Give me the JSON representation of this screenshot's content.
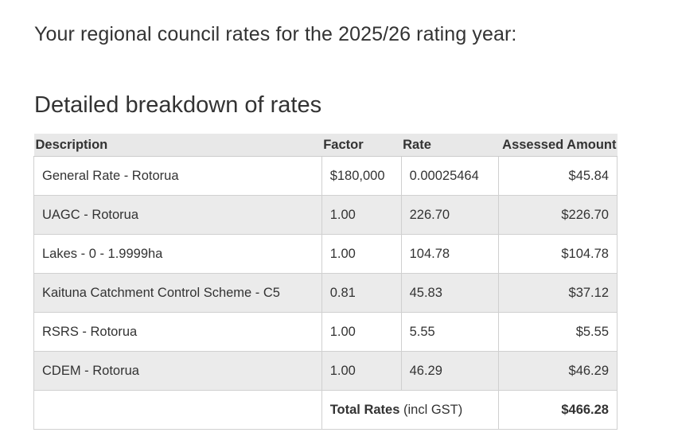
{
  "intro_text": "Your regional council rates for the 2025/26 rating year:",
  "heading": "Detailed breakdown of rates",
  "table": {
    "headers": {
      "description": "Description",
      "factor": "Factor",
      "rate": "Rate",
      "amount": "Assessed Amount"
    },
    "rows": [
      {
        "description": "General Rate - Rotorua",
        "factor": "$180,000",
        "rate": "0.00025464",
        "amount": "$45.84"
      },
      {
        "description": "UAGC - Rotorua",
        "factor": "1.00",
        "rate": "226.70",
        "amount": "$226.70"
      },
      {
        "description": "Lakes - 0 - 1.9999ha",
        "factor": "1.00",
        "rate": "104.78",
        "amount": "$104.78"
      },
      {
        "description": "Kaituna Catchment Control Scheme - C5",
        "factor": "0.81",
        "rate": "45.83",
        "amount": "$37.12"
      },
      {
        "description": "RSRS - Rotorua",
        "factor": "1.00",
        "rate": "5.55",
        "amount": "$5.55"
      },
      {
        "description": "CDEM - Rotorua",
        "factor": "1.00",
        "rate": "46.29",
        "amount": "$46.29"
      }
    ],
    "total": {
      "label": "Total Rates",
      "note": " (incl GST)",
      "amount": "$466.28"
    }
  }
}
